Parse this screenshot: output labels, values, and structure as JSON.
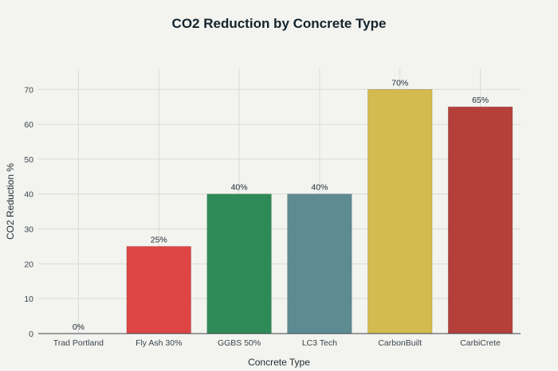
{
  "chart_data": {
    "type": "bar",
    "title": "CO2 Reduction by Concrete Type",
    "xlabel": "Concrete Type",
    "ylabel": "CO2 Reduction %",
    "categories": [
      "Trad Portland",
      "Fly Ash 30%",
      "GGBS 50%",
      "LC3 Tech",
      "CarbonBuilt",
      "CarbiCrete"
    ],
    "values": [
      0,
      25,
      40,
      40,
      70,
      65
    ],
    "data_labels": [
      "0%",
      "25%",
      "40%",
      "40%",
      "70%",
      "65%"
    ],
    "colors": [
      "#3a6ea5",
      "#de4545",
      "#2e8b57",
      "#5e8a91",
      "#d4bb4f",
      "#b3403b"
    ],
    "ylim": [
      0,
      76
    ],
    "yticks": [
      0,
      10,
      20,
      30,
      40,
      50,
      60,
      70
    ],
    "grid": true,
    "legend": "none"
  }
}
